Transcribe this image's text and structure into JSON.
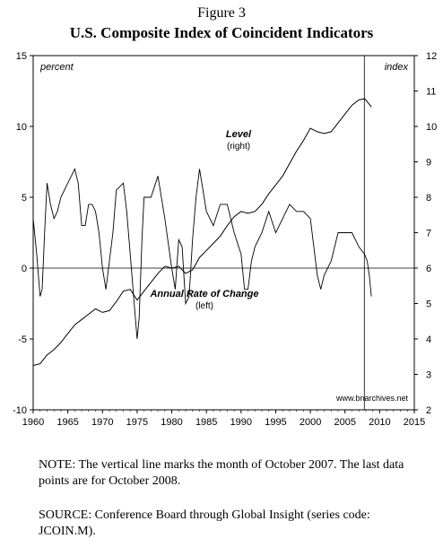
{
  "figure_label": "Figure 3",
  "title": "U.S. Composite Index of Coincident Indicators",
  "notes": {
    "note": "NOTE: The vertical line marks the month of October 2007. The last data points are for October 2008.",
    "source": "SOURCE: Conference Board through Global Insight (series code: JCOIN.M)."
  },
  "chart_data": {
    "type": "line",
    "left_axis_label": "percent",
    "right_axis_label": "index",
    "x_ticks": [
      1960,
      1965,
      1970,
      1975,
      1980,
      1985,
      1990,
      1995,
      2000,
      2005,
      2010,
      2015
    ],
    "xlim": [
      1960,
      2015
    ],
    "left_ylim": [
      -10,
      15
    ],
    "left_ticks": [
      -10,
      -5,
      0,
      5,
      10,
      15
    ],
    "right_ylim": [
      2,
      12
    ],
    "right_ticks": [
      2,
      3,
      4,
      5,
      6,
      7,
      8,
      9,
      10,
      11,
      12
    ],
    "vertical_marker": {
      "date": 2007.79,
      "label": "October 2007"
    },
    "series": [
      {
        "name": "Level",
        "axis_note": "(right)",
        "axis": "right",
        "points": [
          [
            1960.0,
            3.25
          ],
          [
            1961.0,
            3.3
          ],
          [
            1962.0,
            3.55
          ],
          [
            1963.0,
            3.7
          ],
          [
            1964.0,
            3.9
          ],
          [
            1965.0,
            4.15
          ],
          [
            1966.0,
            4.4
          ],
          [
            1967.0,
            4.55
          ],
          [
            1968.0,
            4.7
          ],
          [
            1969.0,
            4.85
          ],
          [
            1970.0,
            4.75
          ],
          [
            1971.0,
            4.8
          ],
          [
            1972.0,
            5.05
          ],
          [
            1973.0,
            5.35
          ],
          [
            1974.0,
            5.4
          ],
          [
            1975.0,
            5.1
          ],
          [
            1976.0,
            5.35
          ],
          [
            1977.0,
            5.6
          ],
          [
            1978.0,
            5.85
          ],
          [
            1979.0,
            6.05
          ],
          [
            1980.0,
            6.0
          ],
          [
            1981.0,
            6.05
          ],
          [
            1982.0,
            5.85
          ],
          [
            1983.0,
            5.95
          ],
          [
            1984.0,
            6.3
          ],
          [
            1985.0,
            6.5
          ],
          [
            1986.0,
            6.7
          ],
          [
            1987.0,
            6.9
          ],
          [
            1988.0,
            7.2
          ],
          [
            1989.0,
            7.45
          ],
          [
            1990.0,
            7.6
          ],
          [
            1991.0,
            7.55
          ],
          [
            1992.0,
            7.6
          ],
          [
            1993.0,
            7.8
          ],
          [
            1994.0,
            8.1
          ],
          [
            1995.0,
            8.35
          ],
          [
            1996.0,
            8.6
          ],
          [
            1997.0,
            8.95
          ],
          [
            1998.0,
            9.3
          ],
          [
            1999.0,
            9.6
          ],
          [
            2000.0,
            9.95
          ],
          [
            2001.0,
            9.85
          ],
          [
            2002.0,
            9.8
          ],
          [
            2003.0,
            9.85
          ],
          [
            2004.0,
            10.1
          ],
          [
            2005.0,
            10.35
          ],
          [
            2006.0,
            10.6
          ],
          [
            2007.0,
            10.75
          ],
          [
            2007.8,
            10.78
          ],
          [
            2008.0,
            10.75
          ],
          [
            2008.4,
            10.65
          ],
          [
            2008.8,
            10.55
          ]
        ]
      },
      {
        "name": "Annual Rate of Change",
        "axis_note": "(left)",
        "axis": "left",
        "points": [
          [
            1960.0,
            3.5
          ],
          [
            1960.5,
            1.0
          ],
          [
            1961.0,
            -2.0
          ],
          [
            1961.3,
            -1.5
          ],
          [
            1961.7,
            3.0
          ],
          [
            1962.0,
            6.0
          ],
          [
            1962.5,
            4.5
          ],
          [
            1963.0,
            3.5
          ],
          [
            1963.5,
            4.0
          ],
          [
            1964.0,
            5.0
          ],
          [
            1965.0,
            6.0
          ],
          [
            1965.5,
            6.5
          ],
          [
            1966.0,
            7.0
          ],
          [
            1966.5,
            6.0
          ],
          [
            1967.0,
            3.0
          ],
          [
            1967.5,
            3.0
          ],
          [
            1968.0,
            4.5
          ],
          [
            1968.5,
            4.5
          ],
          [
            1969.0,
            4.0
          ],
          [
            1969.5,
            2.5
          ],
          [
            1970.0,
            0.0
          ],
          [
            1970.5,
            -1.5
          ],
          [
            1971.0,
            0.5
          ],
          [
            1971.5,
            2.5
          ],
          [
            1972.0,
            5.5
          ],
          [
            1973.0,
            6.0
          ],
          [
            1973.5,
            4.0
          ],
          [
            1974.0,
            1.0
          ],
          [
            1974.5,
            -2.0
          ],
          [
            1975.0,
            -5.0
          ],
          [
            1975.3,
            -3.5
          ],
          [
            1975.7,
            2.0
          ],
          [
            1976.0,
            5.0
          ],
          [
            1977.0,
            5.0
          ],
          [
            1978.0,
            6.5
          ],
          [
            1979.0,
            3.5
          ],
          [
            1980.0,
            0.0
          ],
          [
            1980.5,
            -1.5
          ],
          [
            1981.0,
            2.0
          ],
          [
            1981.5,
            1.5
          ],
          [
            1982.0,
            -2.5
          ],
          [
            1982.5,
            -2.0
          ],
          [
            1983.0,
            2.0
          ],
          [
            1983.5,
            5.0
          ],
          [
            1984.0,
            7.0
          ],
          [
            1985.0,
            4.0
          ],
          [
            1986.0,
            3.0
          ],
          [
            1987.0,
            4.5
          ],
          [
            1988.0,
            4.5
          ],
          [
            1989.0,
            2.5
          ],
          [
            1990.0,
            1.0
          ],
          [
            1990.5,
            -1.5
          ],
          [
            1991.0,
            -1.5
          ],
          [
            1991.5,
            0.5
          ],
          [
            1992.0,
            1.5
          ],
          [
            1993.0,
            2.5
          ],
          [
            1994.0,
            4.0
          ],
          [
            1995.0,
            2.5
          ],
          [
            1996.0,
            3.5
          ],
          [
            1997.0,
            4.5
          ],
          [
            1998.0,
            4.0
          ],
          [
            1999.0,
            4.0
          ],
          [
            2000.0,
            3.5
          ],
          [
            2001.0,
            -0.5
          ],
          [
            2001.5,
            -1.5
          ],
          [
            2002.0,
            -0.5
          ],
          [
            2003.0,
            0.5
          ],
          [
            2004.0,
            2.5
          ],
          [
            2005.0,
            2.5
          ],
          [
            2006.0,
            2.5
          ],
          [
            2007.0,
            1.5
          ],
          [
            2007.8,
            1.0
          ],
          [
            2008.2,
            0.5
          ],
          [
            2008.5,
            -0.5
          ],
          [
            2008.8,
            -2.0
          ]
        ]
      }
    ],
    "watermark": "www.bnarchives.net"
  }
}
